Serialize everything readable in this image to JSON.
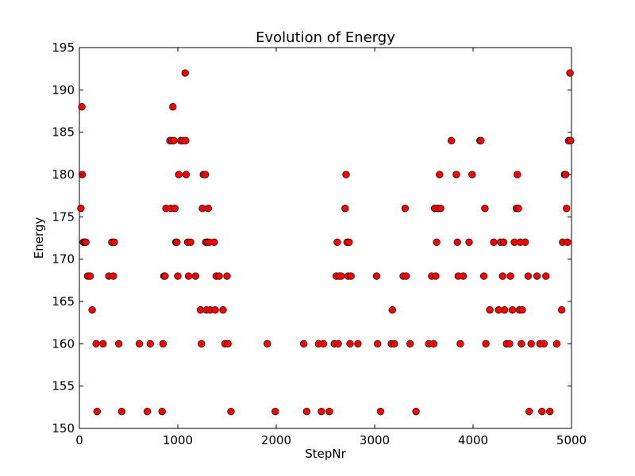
{
  "chart_data": {
    "type": "scatter",
    "title": "Evolution of Energy",
    "xlabel": "StepNr",
    "ylabel": "Energy",
    "xlim": [
      0,
      5000
    ],
    "ylim": [
      150,
      195
    ],
    "x_ticks": [
      0,
      1000,
      2000,
      3000,
      4000,
      5000
    ],
    "y_ticks": [
      150,
      155,
      160,
      165,
      170,
      175,
      180,
      185,
      190,
      195
    ],
    "grid": false,
    "legend": "none",
    "marker_color": "#ff0000",
    "marker_edge_color": "#000000",
    "points": [
      [
        15,
        176
      ],
      [
        25,
        188
      ],
      [
        30,
        180
      ],
      [
        40,
        172
      ],
      [
        55,
        172
      ],
      [
        65,
        172
      ],
      [
        85,
        168
      ],
      [
        110,
        168
      ],
      [
        130,
        164
      ],
      [
        170,
        160
      ],
      [
        180,
        152
      ],
      [
        240,
        160
      ],
      [
        300,
        168
      ],
      [
        330,
        172
      ],
      [
        345,
        168
      ],
      [
        355,
        172
      ],
      [
        400,
        160
      ],
      [
        430,
        152
      ],
      [
        610,
        160
      ],
      [
        690,
        152
      ],
      [
        720,
        160
      ],
      [
        840,
        152
      ],
      [
        850,
        160
      ],
      [
        860,
        168
      ],
      [
        870,
        168
      ],
      [
        880,
        176
      ],
      [
        920,
        184
      ],
      [
        930,
        176
      ],
      [
        940,
        184
      ],
      [
        950,
        188
      ],
      [
        960,
        184
      ],
      [
        970,
        176
      ],
      [
        980,
        172
      ],
      [
        990,
        172
      ],
      [
        1000,
        168
      ],
      [
        1010,
        180
      ],
      [
        1030,
        184
      ],
      [
        1050,
        184
      ],
      [
        1075,
        192
      ],
      [
        1080,
        184
      ],
      [
        1085,
        180
      ],
      [
        1100,
        172
      ],
      [
        1110,
        168
      ],
      [
        1130,
        172
      ],
      [
        1180,
        168
      ],
      [
        1230,
        164
      ],
      [
        1240,
        160
      ],
      [
        1250,
        176
      ],
      [
        1260,
        180
      ],
      [
        1280,
        180
      ],
      [
        1285,
        172
      ],
      [
        1290,
        164
      ],
      [
        1300,
        172
      ],
      [
        1310,
        176
      ],
      [
        1320,
        172
      ],
      [
        1330,
        164
      ],
      [
        1370,
        172
      ],
      [
        1380,
        164
      ],
      [
        1390,
        168
      ],
      [
        1420,
        168
      ],
      [
        1460,
        164
      ],
      [
        1480,
        160
      ],
      [
        1500,
        168
      ],
      [
        1510,
        160
      ],
      [
        1540,
        152
      ],
      [
        1910,
        160
      ],
      [
        1990,
        152
      ],
      [
        2280,
        160
      ],
      [
        2310,
        152
      ],
      [
        2430,
        160
      ],
      [
        2460,
        152
      ],
      [
        2480,
        160
      ],
      [
        2540,
        152
      ],
      [
        2590,
        160
      ],
      [
        2610,
        168
      ],
      [
        2620,
        172
      ],
      [
        2630,
        160
      ],
      [
        2640,
        168
      ],
      [
        2660,
        168
      ],
      [
        2700,
        176
      ],
      [
        2710,
        180
      ],
      [
        2720,
        172
      ],
      [
        2730,
        168
      ],
      [
        2740,
        172
      ],
      [
        2760,
        168
      ],
      [
        2750,
        160
      ],
      [
        2830,
        160
      ],
      [
        3020,
        168
      ],
      [
        3030,
        160
      ],
      [
        3060,
        152
      ],
      [
        3170,
        160
      ],
      [
        3180,
        164
      ],
      [
        3200,
        160
      ],
      [
        3290,
        168
      ],
      [
        3310,
        176
      ],
      [
        3320,
        168
      ],
      [
        3360,
        160
      ],
      [
        3420,
        152
      ],
      [
        3550,
        160
      ],
      [
        3580,
        168
      ],
      [
        3600,
        160
      ],
      [
        3610,
        176
      ],
      [
        3620,
        168
      ],
      [
        3630,
        172
      ],
      [
        3640,
        176
      ],
      [
        3660,
        180
      ],
      [
        3670,
        176
      ],
      [
        3780,
        184
      ],
      [
        3830,
        180
      ],
      [
        3840,
        172
      ],
      [
        3850,
        168
      ],
      [
        3870,
        160
      ],
      [
        3900,
        168
      ],
      [
        3960,
        172
      ],
      [
        3990,
        180
      ],
      [
        4070,
        184
      ],
      [
        4080,
        184
      ],
      [
        4110,
        168
      ],
      [
        4120,
        176
      ],
      [
        4130,
        160
      ],
      [
        4170,
        164
      ],
      [
        4210,
        172
      ],
      [
        4260,
        164
      ],
      [
        4280,
        172
      ],
      [
        4300,
        168
      ],
      [
        4310,
        172
      ],
      [
        4320,
        164
      ],
      [
        4340,
        160
      ],
      [
        4370,
        160
      ],
      [
        4380,
        168
      ],
      [
        4400,
        164
      ],
      [
        4420,
        172
      ],
      [
        4440,
        176
      ],
      [
        4450,
        180
      ],
      [
        4460,
        176
      ],
      [
        4470,
        164
      ],
      [
        4480,
        172
      ],
      [
        4490,
        160
      ],
      [
        4500,
        164
      ],
      [
        4530,
        172
      ],
      [
        4560,
        168
      ],
      [
        4570,
        152
      ],
      [
        4590,
        160
      ],
      [
        4650,
        168
      ],
      [
        4680,
        160
      ],
      [
        4700,
        152
      ],
      [
        4720,
        160
      ],
      [
        4740,
        168
      ],
      [
        4780,
        152
      ],
      [
        4850,
        160
      ],
      [
        4900,
        164
      ],
      [
        4910,
        172
      ],
      [
        4930,
        180
      ],
      [
        4940,
        180
      ],
      [
        4950,
        176
      ],
      [
        4960,
        172
      ],
      [
        4970,
        184
      ],
      [
        4985,
        192
      ],
      [
        4990,
        184
      ]
    ]
  }
}
